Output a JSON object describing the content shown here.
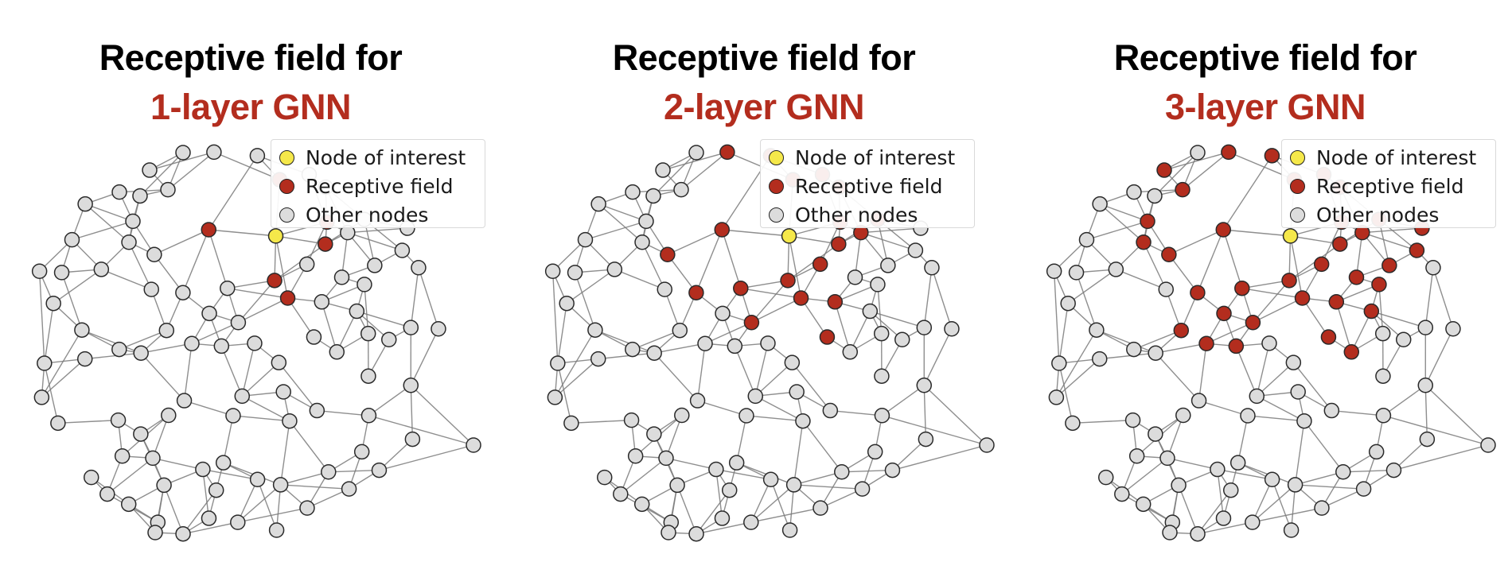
{
  "colors": {
    "node_of_interest": "#f5e84a",
    "receptive_field": "#b32d1e",
    "other_nodes": "#dcdcdc",
    "edge": "#7a7a7a",
    "title_accent": "#b32d1e"
  },
  "legend": {
    "node_of_interest": "Node of interest",
    "receptive_field": "Receptive field",
    "other_nodes": "Other nodes"
  },
  "panels": [
    {
      "title_line1": "Receptive field for",
      "title_line2": "1-layer GNN",
      "layers": 1
    },
    {
      "title_line1": "Receptive field for",
      "title_line2": "2-layer GNN",
      "layers": 2
    },
    {
      "title_line1": "Receptive field for",
      "title_line2": "3-layer GNN",
      "layers": 3
    }
  ]
}
